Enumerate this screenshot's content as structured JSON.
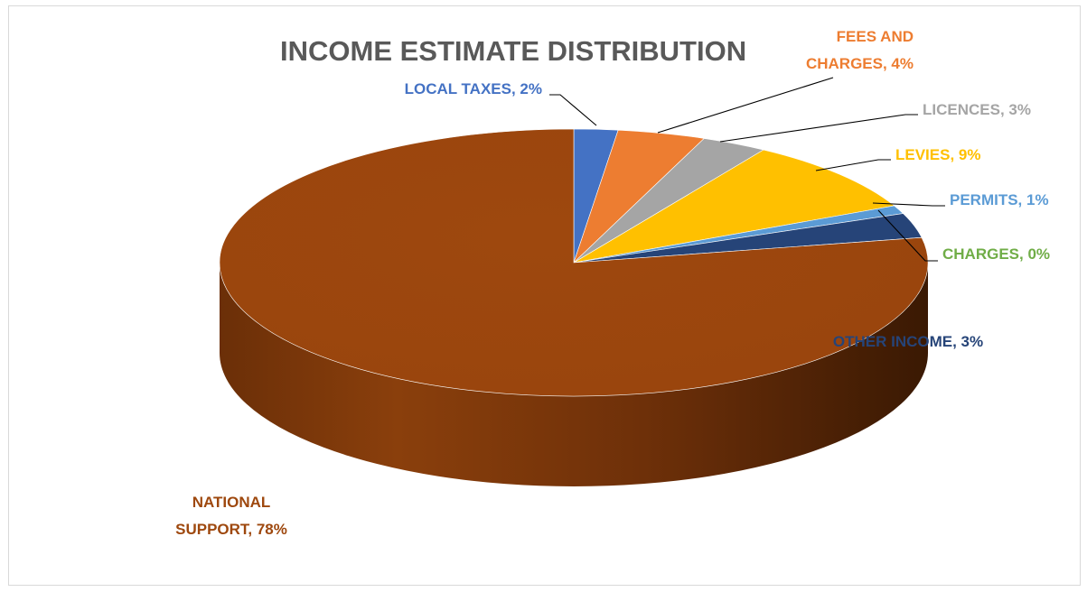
{
  "chart_data": {
    "type": "pie",
    "style": "3d",
    "title": "INCOME ESTIMATE DISTRIBUTION",
    "legend": "none",
    "data_labels": "category, percentage",
    "slices": [
      {
        "category": "LOCAL TAXES",
        "percent": 2,
        "color": "#4472c4",
        "label_lines": [
          "LOCAL TAXES, 2%"
        ]
      },
      {
        "category": "FEES AND CHARGES",
        "percent": 4,
        "color": "#ed7d31",
        "label_lines": [
          "FEES AND",
          "CHARGES, 4%"
        ]
      },
      {
        "category": "LICENCES",
        "percent": 3,
        "color": "#a5a5a5",
        "label_lines": [
          "LICENCES, 3%"
        ]
      },
      {
        "category": "LEVIES",
        "percent": 9,
        "color": "#ffc000",
        "label_lines": [
          "LEVIES, 9%"
        ]
      },
      {
        "category": "PERMITS",
        "percent": 1,
        "color": "#5b9bd5",
        "label_lines": [
          "PERMITS, 1%"
        ]
      },
      {
        "category": "CHARGES",
        "percent": 0,
        "color": "#70ad47",
        "label_lines": [
          "CHARGES, 0%"
        ]
      },
      {
        "category": "OTHER INCOME",
        "percent": 3,
        "color": "#264478",
        "label_lines": [
          "OTHER INCOME, 3%"
        ]
      },
      {
        "category": "NATIONAL SUPPORT",
        "percent": 78,
        "color": "#9e480e",
        "label_lines": [
          "NATIONAL",
          "SUPPORT, 78%"
        ]
      }
    ]
  }
}
